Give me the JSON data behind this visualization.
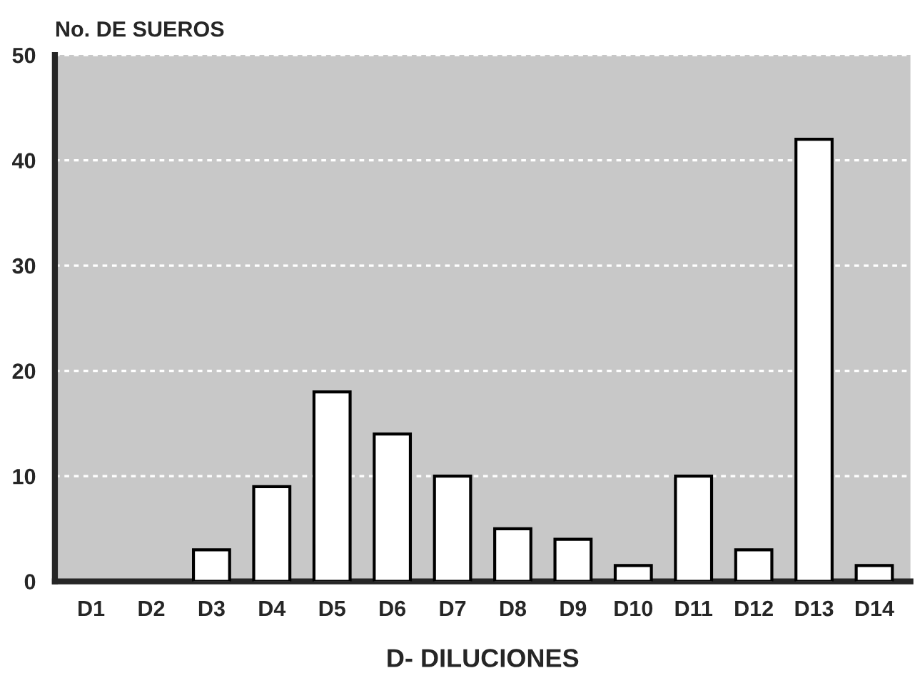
{
  "chart_data": {
    "type": "bar",
    "xlabel": "D- DILUCIONES",
    "ylabel": "No. DE SUEROS",
    "categories": [
      "D1",
      "D2",
      "D3",
      "D4",
      "D5",
      "D6",
      "D7",
      "D8",
      "D9",
      "D10",
      "D11",
      "D12",
      "D13",
      "D14"
    ],
    "values": [
      0,
      0,
      3,
      9,
      18,
      14,
      10,
      5,
      4,
      1.5,
      10,
      3,
      42,
      1.5
    ],
    "color": "#ffffff",
    "ylim": [
      0,
      50
    ],
    "yticks": [
      0,
      10,
      20,
      30,
      40,
      50
    ],
    "grid": "y"
  }
}
